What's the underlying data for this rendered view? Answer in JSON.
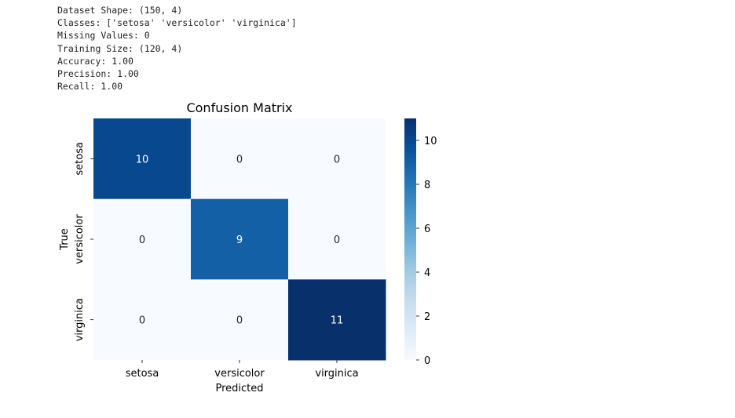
{
  "console_output": [
    "Dataset Shape: (150, 4)",
    "Classes: ['setosa' 'versicolor' 'virginica']",
    "Missing Values: 0",
    "Training Size: (120, 4)",
    "Accuracy: 1.00",
    "Precision: 1.00",
    "Recall: 1.00"
  ],
  "chart_data": {
    "type": "heatmap",
    "title": "Confusion Matrix",
    "xlabel": "Predicted",
    "ylabel": "True",
    "x_categories": [
      "setosa",
      "versicolor",
      "virginica"
    ],
    "y_categories": [
      "setosa",
      "versicolor",
      "virginica"
    ],
    "values": [
      [
        10,
        0,
        0
      ],
      [
        0,
        9,
        0
      ],
      [
        0,
        0,
        11
      ]
    ],
    "colormap": "Blues",
    "colorbar": {
      "range": [
        0,
        11
      ],
      "ticks": [
        0,
        2,
        4,
        6,
        8,
        10
      ]
    },
    "colors": {
      "low": "#f7fbff",
      "high": "#08306b"
    }
  }
}
